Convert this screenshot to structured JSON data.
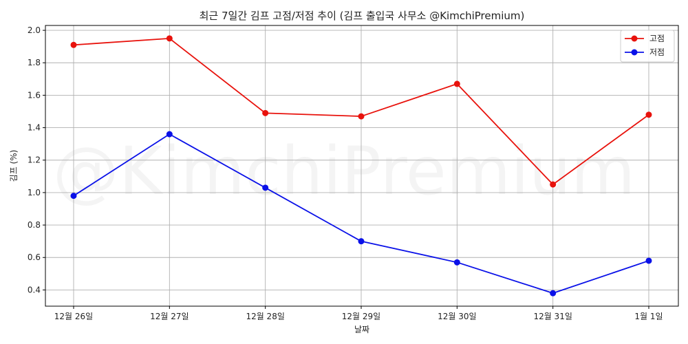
{
  "chart_data": {
    "type": "line",
    "title": "최근 7일간 김프 고점/저점 추이 (김프 출입국 사무소 @KimchiPremium)",
    "xlabel": "날짜",
    "ylabel": "김프 (%)",
    "watermark": "@KimchiPremium",
    "categories": [
      "12월 26일",
      "12월 27일",
      "12월 28일",
      "12월 29일",
      "12월 30일",
      "12월 31일",
      "1월 1일"
    ],
    "ylim": [
      0.3,
      2.03
    ],
    "yticks": [
      0.4,
      0.6,
      0.8,
      1.0,
      1.2,
      1.4,
      1.6,
      1.8,
      2.0
    ],
    "ytick_labels": [
      "0.4",
      "0.6",
      "0.8",
      "1.0",
      "1.2",
      "1.4",
      "1.6",
      "1.8",
      "2.0"
    ],
    "grid": true,
    "legend_position": "top-right",
    "series": [
      {
        "name": "고점",
        "color": "#e8120c",
        "values": [
          1.91,
          1.95,
          1.49,
          1.47,
          1.67,
          1.05,
          1.48
        ]
      },
      {
        "name": "저점",
        "color": "#0a11e8",
        "values": [
          0.98,
          1.36,
          1.03,
          0.7,
          0.57,
          0.38,
          0.58
        ]
      }
    ]
  }
}
